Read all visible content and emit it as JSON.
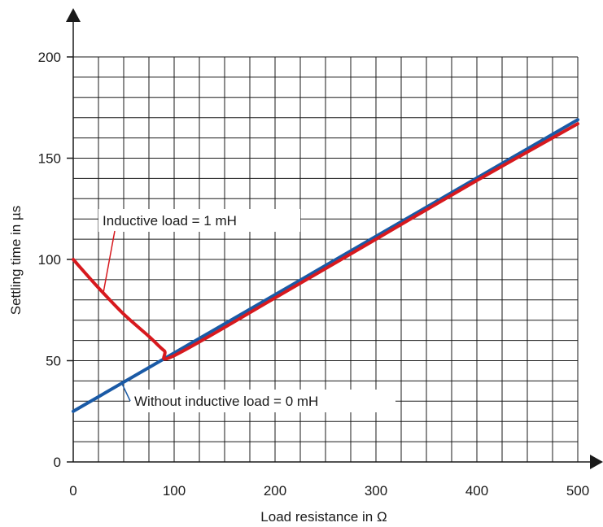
{
  "chart_data": {
    "type": "line",
    "title": "",
    "xlabel": "Load resistance in Ω",
    "ylabel": "Settling time in µs",
    "xlim": [
      0,
      500
    ],
    "ylim": [
      0,
      200
    ],
    "x_ticks": [
      0,
      100,
      200,
      300,
      400,
      500
    ],
    "x_tick_labels": [
      "0",
      "100",
      "200",
      "300",
      "400",
      "500"
    ],
    "y_ticks": [
      0,
      50,
      100,
      150,
      200
    ],
    "y_tick_labels": [
      "0",
      "50",
      "100",
      "150",
      "200"
    ],
    "grid": true,
    "grid_step_x": 25,
    "grid_step_y": 10,
    "series": [
      {
        "name": "Without inductive load = 0 mH",
        "color": "#1a5aa6",
        "x": [
          0,
          500
        ],
        "y": [
          25,
          169
        ]
      },
      {
        "name": "Inductive load = 1 mH",
        "color": "#d7191e",
        "x": [
          0,
          25,
          50,
          75,
          90,
          100,
          200,
          300,
          400,
          500
        ],
        "y": [
          100,
          86,
          73,
          62,
          55,
          52.5,
          81,
          110,
          139,
          167
        ]
      }
    ],
    "annotations": [
      {
        "text": "Inductive load = 1 mH",
        "series": 1,
        "point": [
          30,
          84
        ]
      },
      {
        "text": "Without inductive load = 0 mH",
        "series": 0,
        "point": [
          48,
          39
        ]
      }
    ]
  }
}
